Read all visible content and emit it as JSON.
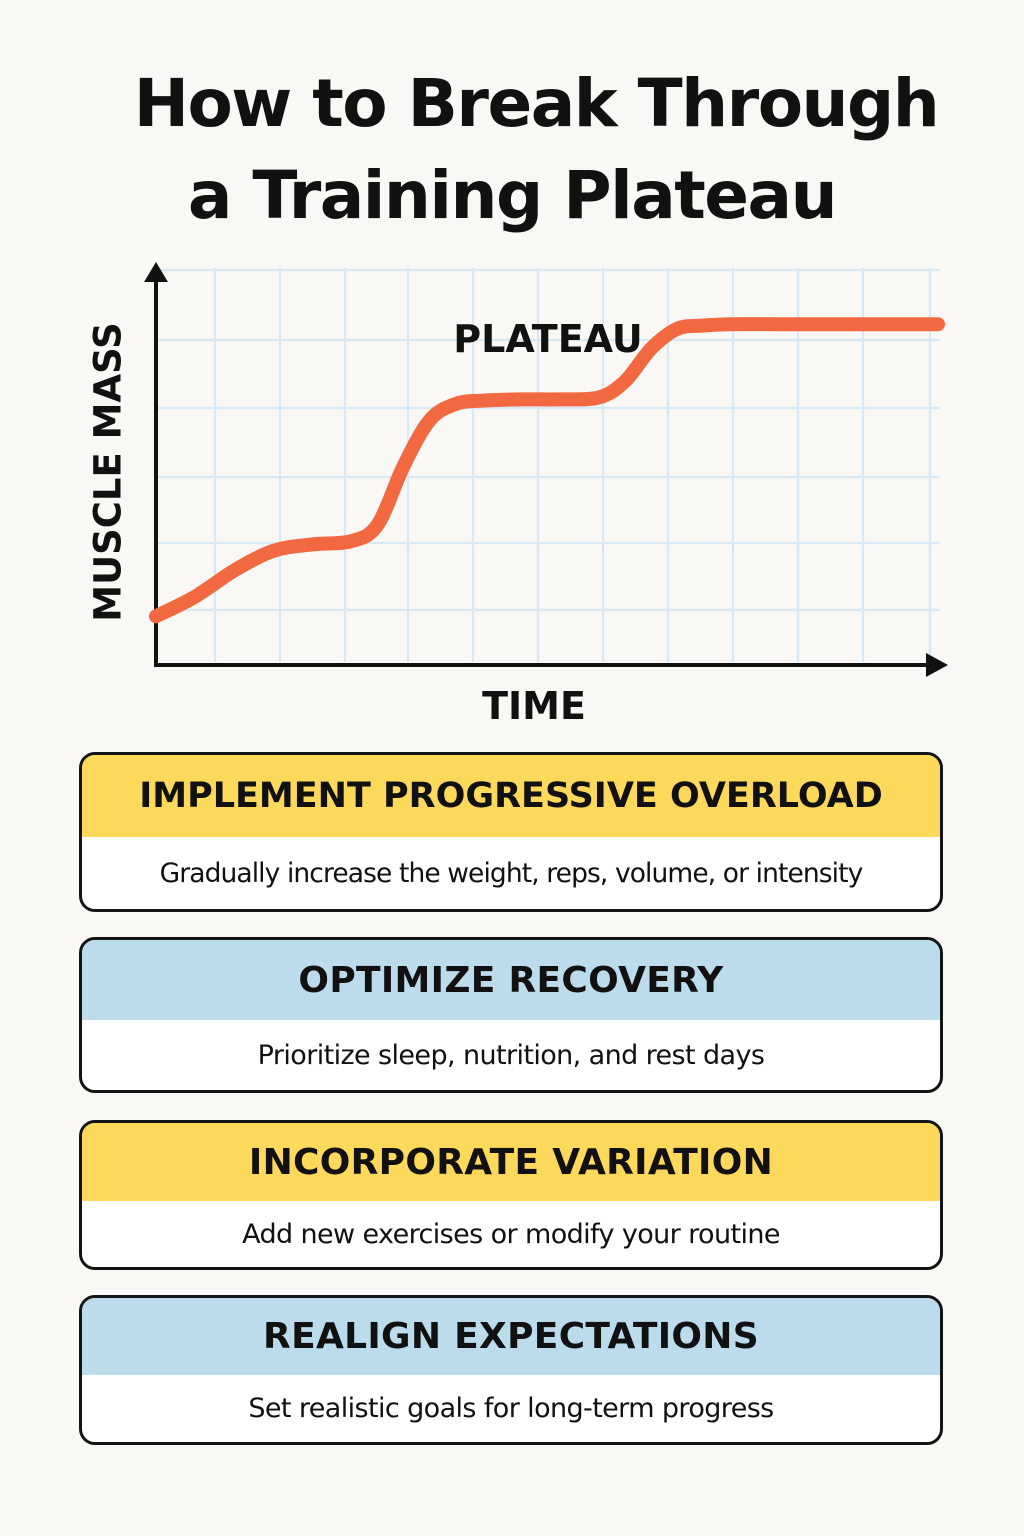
{
  "title": {
    "line1": "How to Break Through",
    "line2": "a Training Plateau"
  },
  "chart_data": {
    "type": "line",
    "title": "",
    "xlabel": "TIME",
    "ylabel": "MUSCLE MASS",
    "annotation": "PLATEAU",
    "grid": true,
    "xlim": [
      0,
      12
    ],
    "ylim": [
      0,
      6
    ],
    "series": [
      {
        "name": "Muscle mass over time",
        "color": "#f26841",
        "x": [
          0,
          0.6,
          1.2,
          1.8,
          2.4,
          3.0,
          3.4,
          3.8,
          4.2,
          4.6,
          5.0,
          5.6,
          6.2,
          6.8,
          7.2,
          7.6,
          8.0,
          8.4,
          8.8,
          9.5,
          10.5,
          11.5,
          12
        ],
        "y": [
          0.7,
          1.0,
          1.4,
          1.7,
          1.8,
          1.85,
          2.1,
          3.0,
          3.7,
          3.95,
          4.0,
          4.02,
          4.02,
          4.05,
          4.3,
          4.8,
          5.1,
          5.15,
          5.17,
          5.17,
          5.17,
          5.17,
          5.17
        ]
      }
    ]
  },
  "colors": {
    "background": "#f9f8f5",
    "line": "#f26841",
    "grid": "#d8e8f4",
    "yellow": "#fcd95b",
    "blue": "#bcdcec",
    "border": "#141414"
  },
  "tips": [
    {
      "heading": "IMPLEMENT PROGRESSIVE OVERLOAD",
      "text": "Gradually increase the weight, reps, volume, or intensity"
    },
    {
      "heading": "OPTIMIZE RECOVERY",
      "text": "Prioritize sleep, nutrition, and rest days"
    },
    {
      "heading": "INCORPORATE VARIATION",
      "text": "Add new exercises or modify your routine"
    },
    {
      "heading": "REALIGN EXPECTATIONS",
      "text": "Set realistic goals for long-term progress"
    }
  ]
}
